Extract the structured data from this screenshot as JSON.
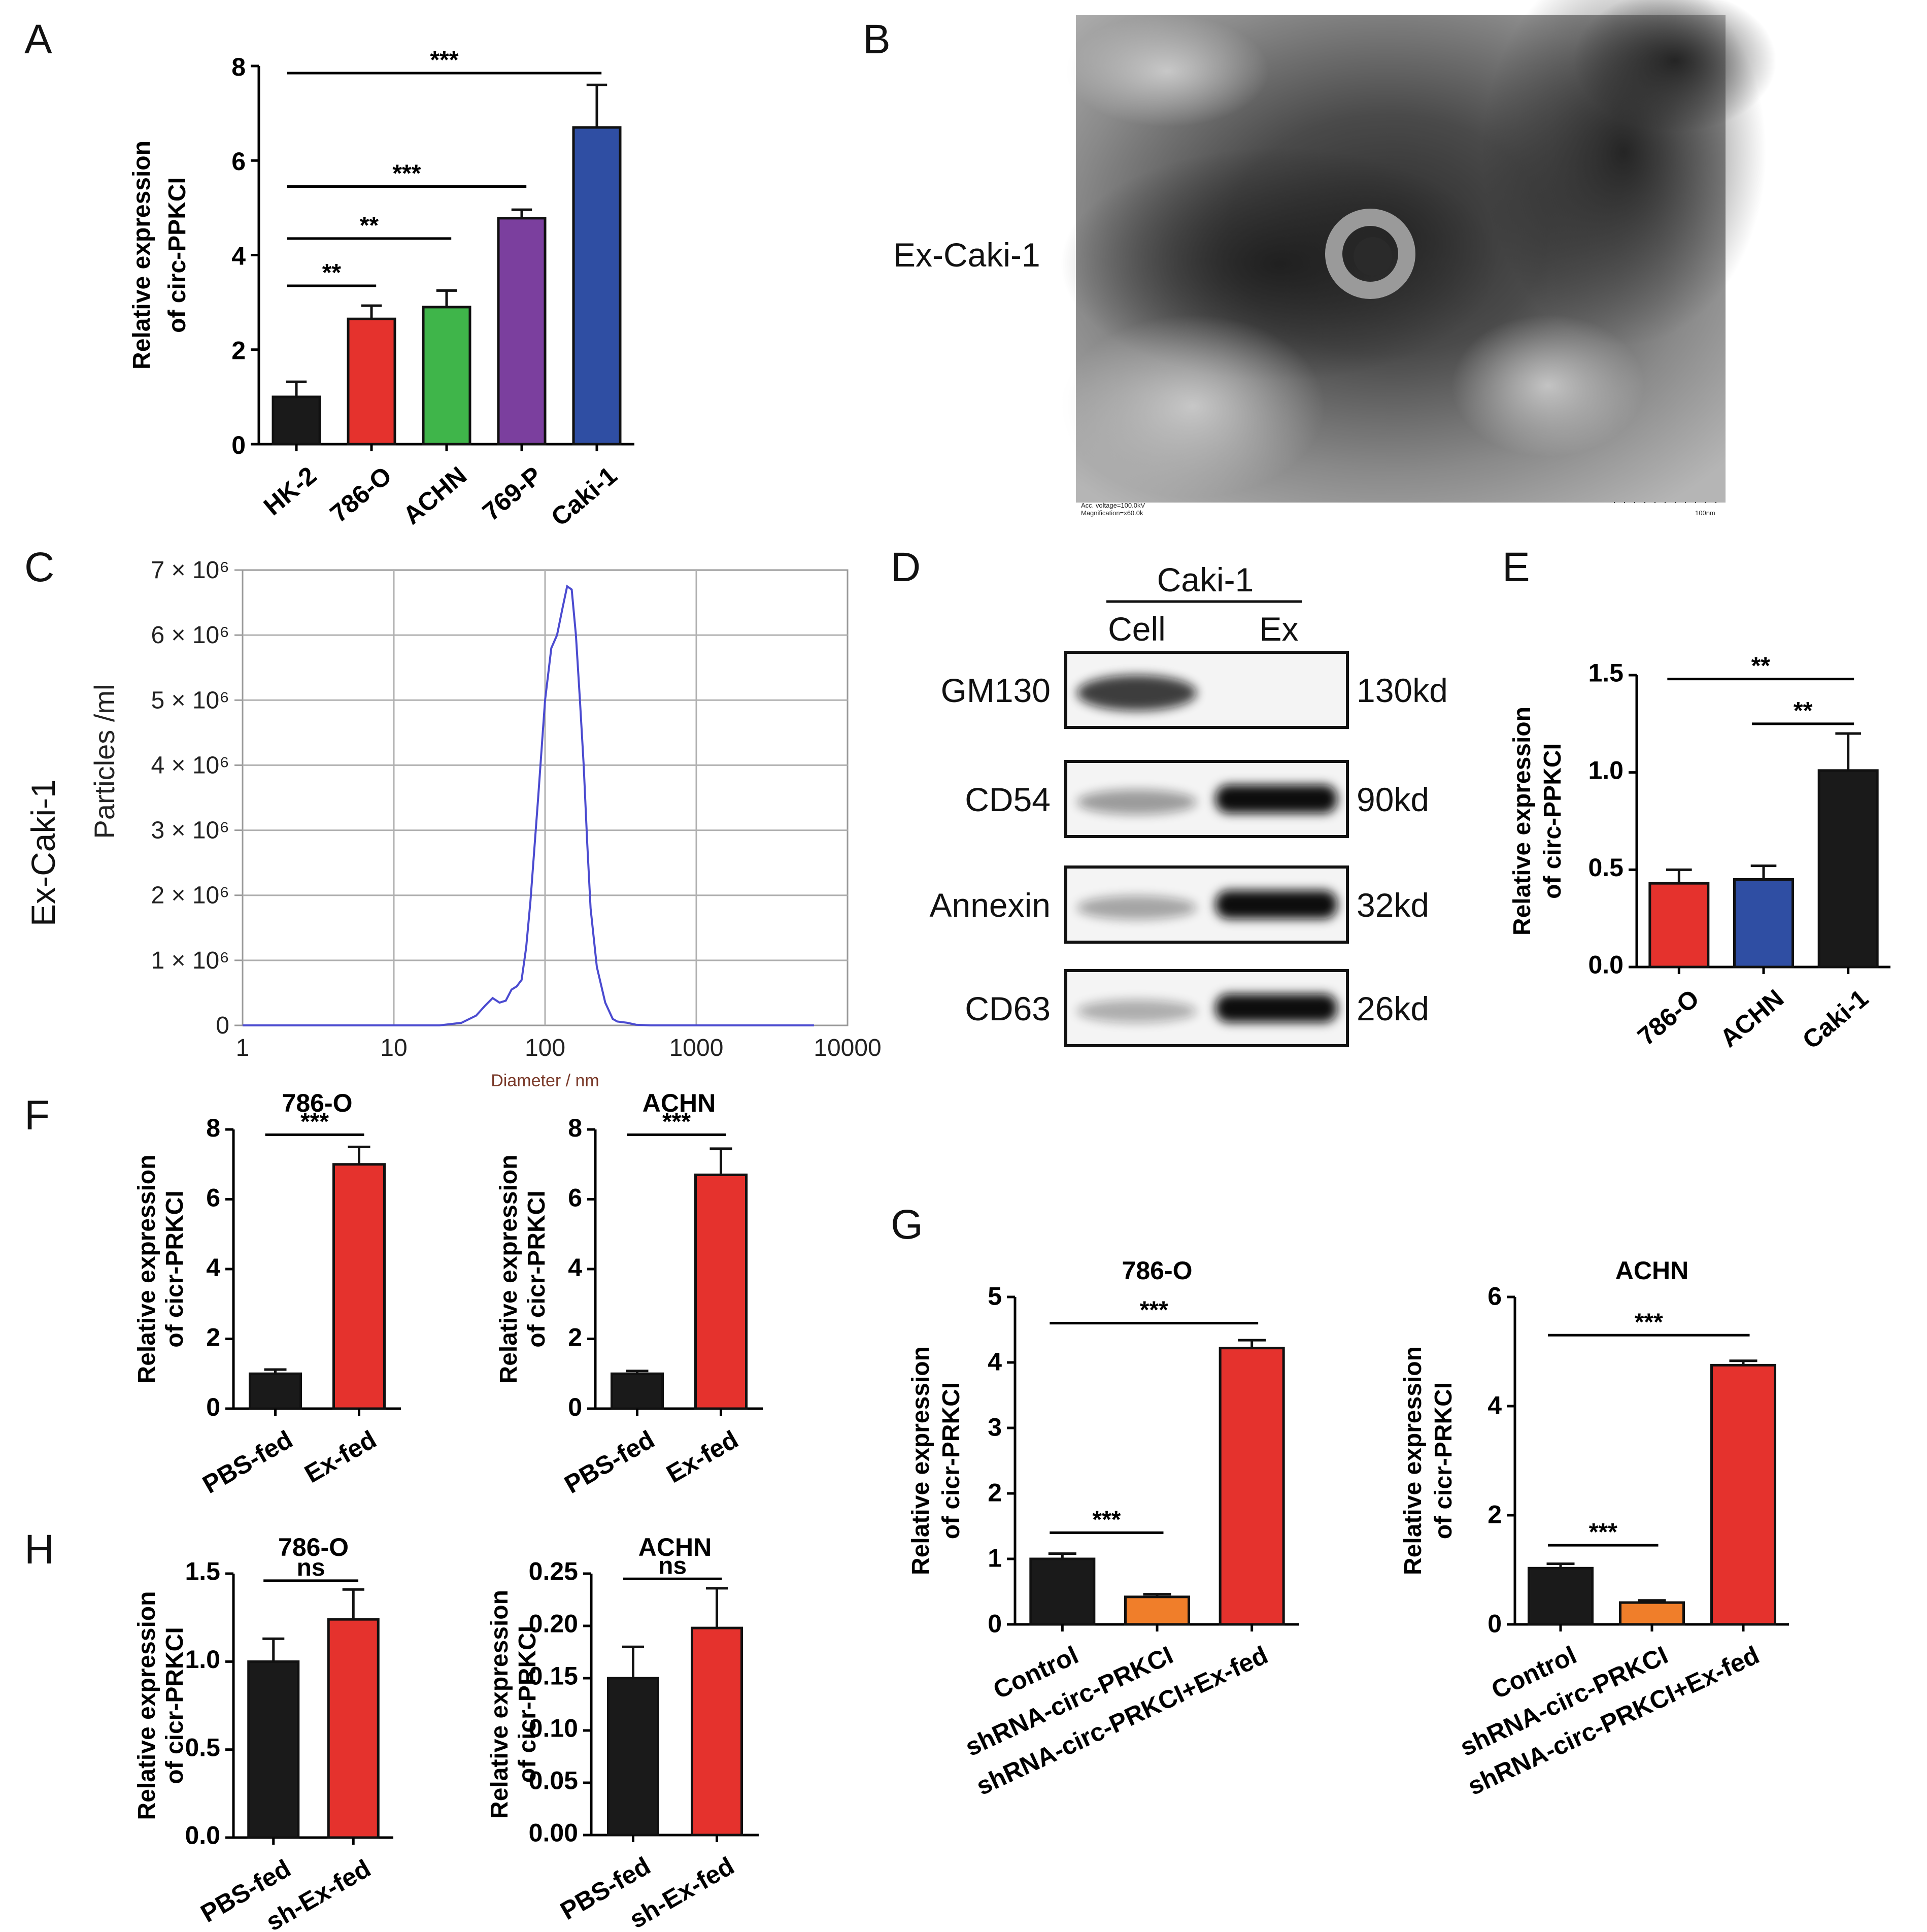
{
  "panels": {
    "A": "A",
    "B": "B",
    "C": "C",
    "D": "D",
    "E": "E",
    "F": "F",
    "G": "G",
    "H": "H"
  },
  "chart_data": [
    {
      "id": "A",
      "type": "bar",
      "categories": [
        "HK-2",
        "786-O",
        "ACHN",
        "769-P",
        "Caki-1"
      ],
      "values": [
        1.0,
        2.65,
        2.9,
        4.78,
        6.7
      ],
      "errors": [
        0.32,
        0.28,
        0.35,
        0.18,
        0.9
      ],
      "colors": [
        "#1a1a1a",
        "#e5322d",
        "#3fb54a",
        "#7b3f9e",
        "#2f4ea3"
      ],
      "ylabel": [
        "Relative expression",
        "of circ-PPKCI"
      ],
      "ylim": [
        0,
        8
      ],
      "yticks": [
        "0",
        "2",
        "4",
        "6",
        "8"
      ],
      "significance": [
        {
          "from": 0,
          "to": 1,
          "label": "**",
          "y": 3.35
        },
        {
          "from": 0,
          "to": 2,
          "label": "**",
          "y": 4.35
        },
        {
          "from": 0,
          "to": 3,
          "label": "***",
          "y": 5.45
        },
        {
          "from": 0,
          "to": 4,
          "label": "***",
          "y": 7.85
        }
      ]
    },
    {
      "id": "C",
      "type": "line",
      "row_label": "Ex-Caki-1",
      "ylabel": "Particles /ml",
      "xlabel": "Diameter / nm",
      "xscale": "log",
      "xlim": [
        1,
        10000
      ],
      "ylim": [
        0,
        7000000
      ],
      "xticks": [
        "1",
        "10",
        "100",
        "1000",
        "10000"
      ],
      "yticks": [
        "0",
        "1 × 10⁶",
        "2 × 10⁶",
        "3 × 10⁶",
        "4 × 10⁶",
        "5 × 10⁶",
        "6 × 10⁶",
        "7 × 10⁶"
      ],
      "x": [
        1,
        20,
        28,
        35,
        40,
        45,
        50,
        55,
        60,
        65,
        70,
        75,
        80,
        90,
        100,
        110,
        120,
        130,
        140,
        150,
        160,
        170,
        180,
        190,
        200,
        220,
        250,
        280,
        300,
        350,
        400,
        500,
        1000,
        6000
      ],
      "y": [
        0,
        0,
        40000,
        150000,
        300000,
        420000,
        350000,
        380000,
        550000,
        600000,
        700000,
        1200000,
        1900000,
        3500000,
        5000000,
        5800000,
        6000000,
        6400000,
        6750000,
        6700000,
        6000000,
        5000000,
        4000000,
        2800000,
        1800000,
        900000,
        350000,
        100000,
        60000,
        40000,
        10000,
        0,
        0,
        0
      ],
      "grid": true,
      "color": "#4b4bd0"
    },
    {
      "id": "E",
      "type": "bar",
      "categories": [
        "786-O",
        "ACHN",
        "Caki-1"
      ],
      "values": [
        0.43,
        0.45,
        1.01
      ],
      "errors": [
        0.07,
        0.07,
        0.19
      ],
      "colors": [
        "#e5322d",
        "#2f4ea3",
        "#1a1a1a"
      ],
      "ylabel": [
        "Relative expression",
        "of circ-PPKCI"
      ],
      "ylim": [
        0,
        1.5
      ],
      "yticks": [
        "0.0",
        "0.5",
        "1.0",
        "1.5"
      ],
      "significance": [
        {
          "from": 1,
          "to": 2,
          "label": "**",
          "y": 1.25
        },
        {
          "from": 0,
          "to": 2,
          "label": "**",
          "y": 1.48
        }
      ]
    },
    {
      "id": "F1",
      "type": "bar",
      "title": "786-O",
      "categories": [
        "PBS-fed",
        "Ex-fed"
      ],
      "values": [
        1.0,
        7.0
      ],
      "errors": [
        0.12,
        0.5
      ],
      "colors": [
        "#1a1a1a",
        "#e5322d"
      ],
      "ylabel": [
        "Relative expression",
        "of cicr-PRKCI"
      ],
      "ylim": [
        0,
        8
      ],
      "yticks": [
        "0",
        "2",
        "4",
        "6",
        "8"
      ],
      "significance": [
        {
          "from": 0,
          "to": 1,
          "label": "***",
          "y": 7.85
        }
      ]
    },
    {
      "id": "F2",
      "type": "bar",
      "title": "ACHN",
      "categories": [
        "PBS-fed",
        "Ex-fed"
      ],
      "values": [
        1.0,
        6.7
      ],
      "errors": [
        0.08,
        0.75
      ],
      "colors": [
        "#1a1a1a",
        "#e5322d"
      ],
      "ylabel": [
        "Relative expression",
        "of cicr-PRKCI"
      ],
      "ylim": [
        0,
        8
      ],
      "yticks": [
        "0",
        "2",
        "4",
        "6",
        "8"
      ],
      "significance": [
        {
          "from": 0,
          "to": 1,
          "label": "***",
          "y": 7.85
        }
      ]
    },
    {
      "id": "G1",
      "type": "bar",
      "title": "786-O",
      "categories": [
        "Control",
        "shRNA-circ-PRKCI",
        "shRNA-circ-PRKCI+Ex-fed"
      ],
      "values": [
        1.0,
        0.42,
        4.22
      ],
      "errors": [
        0.08,
        0.04,
        0.12
      ],
      "colors": [
        "#1a1a1a",
        "#f07e2a",
        "#e5322d"
      ],
      "ylabel": [
        "Relative expression",
        "of cicr-PRKCI"
      ],
      "ylim": [
        0,
        5
      ],
      "yticks": [
        "0",
        "1",
        "2",
        "3",
        "4",
        "5"
      ],
      "significance": [
        {
          "from": 0,
          "to": 1,
          "label": "***",
          "y": 1.4
        },
        {
          "from": 0,
          "to": 2,
          "label": "***",
          "y": 4.6
        }
      ]
    },
    {
      "id": "G2",
      "type": "bar",
      "title": "ACHN",
      "categories": [
        "Control",
        "shRNA-circ-PRKCI",
        "shRNA-circ-PRKCI+Ex-fed"
      ],
      "values": [
        1.03,
        0.4,
        4.75
      ],
      "errors": [
        0.08,
        0.04,
        0.08
      ],
      "colors": [
        "#1a1a1a",
        "#f07e2a",
        "#e5322d"
      ],
      "ylabel": [
        "Relative expression",
        "of cicr-PRKCI"
      ],
      "ylim": [
        0,
        6
      ],
      "yticks": [
        "0",
        "2",
        "4",
        "6"
      ],
      "significance": [
        {
          "from": 0,
          "to": 1,
          "label": "***",
          "y": 1.45
        },
        {
          "from": 0,
          "to": 2,
          "label": "***",
          "y": 5.3
        }
      ]
    },
    {
      "id": "H1",
      "type": "bar",
      "title": "786-O",
      "categories": [
        "PBS-fed",
        "sh-Ex-fed"
      ],
      "values": [
        1.0,
        1.24
      ],
      "errors": [
        0.13,
        0.17
      ],
      "colors": [
        "#1a1a1a",
        "#e5322d"
      ],
      "ylabel": [
        "Relative expression",
        "of cicr-PRKCI"
      ],
      "ylim": [
        0,
        1.5
      ],
      "yticks": [
        "0.0",
        "0.5",
        "1.0",
        "1.5"
      ],
      "significance": [
        {
          "from": 0,
          "to": 1,
          "label": "ns",
          "y": 1.46
        }
      ]
    },
    {
      "id": "H2",
      "type": "bar",
      "title": "ACHN",
      "categories": [
        "PBS-fed",
        "sh-Ex-fed"
      ],
      "values": [
        0.15,
        0.198
      ],
      "errors": [
        0.03,
        0.038
      ],
      "colors": [
        "#1a1a1a",
        "#e5322d"
      ],
      "ylabel": [
        "Relative expression",
        "of cicr-PRKCI"
      ],
      "ylim": [
        0,
        0.25
      ],
      "yticks": [
        "0.00",
        "0.05",
        "0.10",
        "0.15",
        "0.20",
        "0.25"
      ],
      "significance": [
        {
          "from": 0,
          "to": 1,
          "label": "ns",
          "y": 0.245
        }
      ]
    }
  ],
  "tem": {
    "label": "Ex-Caki-1",
    "caption_left": [
      "Acc. voltage=100.0kV",
      "Magnification=x60.0k"
    ],
    "caption_right": "100nm"
  },
  "western": {
    "header": "Caki-1",
    "columns": [
      "Cell",
      "Ex"
    ],
    "rows": [
      {
        "name": "GM130",
        "size": "130kd",
        "cell": 0.85,
        "ex": 0.0
      },
      {
        "name": "CD54",
        "size": "90kd",
        "cell": 0.25,
        "ex": 1.0
      },
      {
        "name": "Annexin",
        "size": "32kd",
        "cell": 0.2,
        "ex": 1.0
      },
      {
        "name": "CD63",
        "size": "26kd",
        "cell": 0.15,
        "ex": 1.0
      }
    ]
  }
}
